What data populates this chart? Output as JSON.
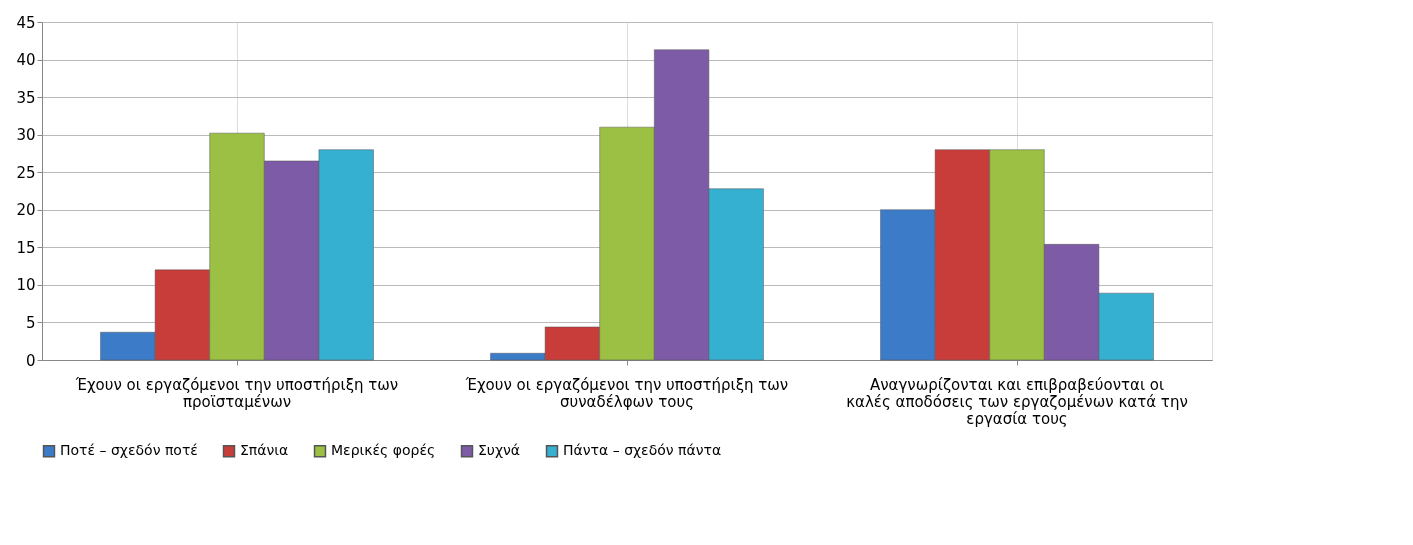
{
  "chart_data": {
    "type": "bar",
    "categories": [
      "Έχουν οι εργαζόμενοι την υποστήριξη των προϊσταμένων",
      "Έχουν οι εργαζόμενοι την υποστήριξη των συναδέλφων τους",
      "Αναγνωρίζονται και επιβραβεύονται οι καλές αποδόσεις των εργαζομένων κατά την εργασία τους"
    ],
    "series": [
      {
        "name": "Ποτέ – σχεδόν ποτέ",
        "color": "#3c7bc8",
        "values": [
          3.7,
          0.9,
          20
        ]
      },
      {
        "name": "Σπάνια",
        "color": "#c83c3a",
        "values": [
          12,
          4.4,
          28
        ]
      },
      {
        "name": "Μερικές φορές",
        "color": "#9bc043",
        "values": [
          30.2,
          31,
          28
        ]
      },
      {
        "name": "Συχνά",
        "color": "#7d5ba6",
        "values": [
          26.5,
          41.3,
          15.4
        ]
      },
      {
        "name": "Πάντα – σχεδόν πάντα",
        "color": "#35b0d0",
        "values": [
          28,
          22.8,
          8.9
        ]
      }
    ],
    "ylim": [
      0,
      45
    ],
    "yticks": [
      0,
      5,
      10,
      15,
      20,
      25,
      30,
      35,
      40,
      45
    ],
    "grid": true,
    "legend": "bottom"
  }
}
